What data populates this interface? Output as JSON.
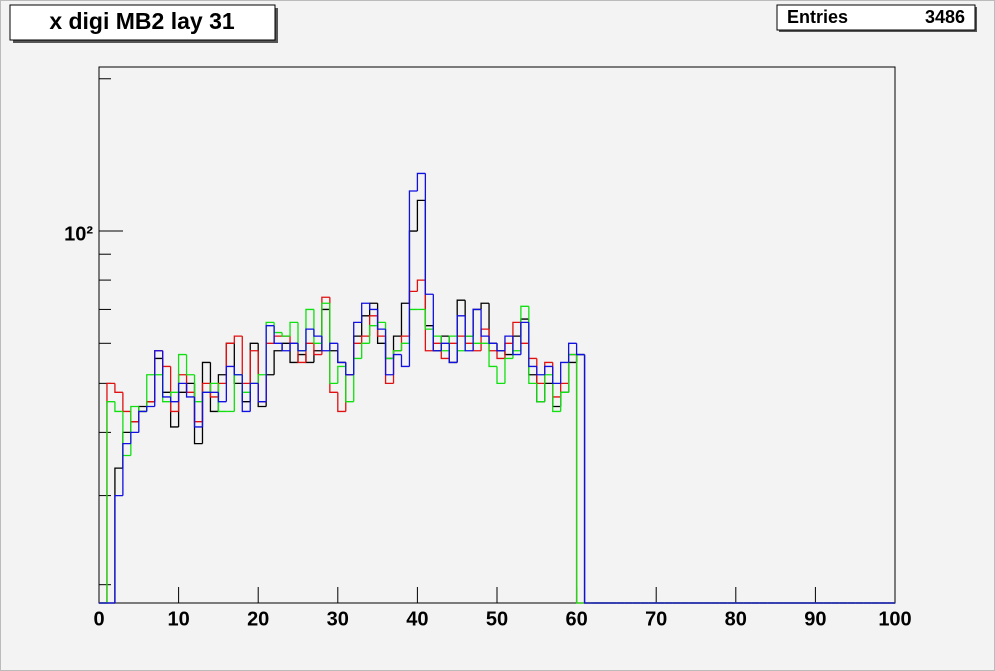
{
  "chart_data": {
    "type": "histogram",
    "title": "x digi MB2 lay 31",
    "stats": {
      "label": "Entries",
      "value": 3486
    },
    "log_y": true,
    "bins": [
      0,
      1,
      2,
      3,
      4,
      5,
      6,
      7,
      8,
      9,
      10,
      11,
      12,
      13,
      14,
      15,
      16,
      17,
      18,
      19,
      20,
      21,
      22,
      23,
      24,
      25,
      26,
      27,
      28,
      29,
      30,
      31,
      32,
      33,
      34,
      35,
      36,
      37,
      38,
      39,
      40,
      41,
      42,
      43,
      44,
      45,
      46,
      47,
      48,
      49,
      50,
      51,
      52,
      53,
      54,
      55,
      56,
      57,
      58,
      59,
      60,
      61,
      62,
      63,
      64,
      65,
      66,
      67,
      68,
      69,
      70,
      71,
      72,
      73,
      74,
      75,
      76,
      77,
      78,
      79,
      80,
      81,
      82,
      83,
      84,
      85,
      86,
      87,
      88,
      89,
      90,
      91,
      92,
      93,
      94,
      95,
      96,
      97,
      98,
      99,
      100
    ],
    "xlim": [
      0,
      100
    ],
    "xticks": [
      0,
      10,
      20,
      30,
      40,
      50,
      60,
      70,
      80,
      90,
      100
    ],
    "ylim": [
      18.4,
      211
    ],
    "yticks": [
      {
        "value": 100,
        "label": "10²"
      }
    ],
    "yminor_ticks": [
      20,
      30,
      40,
      50,
      60,
      70,
      80,
      90,
      200
    ],
    "series": [
      {
        "color": "#000000",
        "values": [
          0,
          0,
          34,
          40,
          42,
          45,
          46,
          56,
          48,
          41,
          48,
          50,
          38,
          55,
          44,
          52,
          60,
          50,
          46,
          60,
          45,
          52,
          58,
          60,
          55,
          57,
          55,
          58,
          70,
          58,
          55,
          52,
          62,
          68,
          72,
          60,
          56,
          62,
          72,
          100,
          115,
          65,
          58,
          62,
          55,
          73,
          62,
          70,
          72,
          60,
          58,
          57,
          62,
          67,
          52,
          46,
          50,
          45,
          48,
          55,
          57,
          0,
          0,
          0,
          0,
          0,
          0,
          0,
          0,
          0,
          0,
          0,
          0,
          0,
          0,
          0,
          0,
          0,
          0,
          0,
          0,
          0,
          0,
          0,
          0,
          0,
          0,
          0,
          0,
          0,
          0,
          0,
          0,
          0,
          0,
          0,
          0,
          0,
          0,
          0
        ]
      },
      {
        "color": "#e01010",
        "values": [
          0,
          50,
          48,
          44,
          42,
          44,
          46,
          58,
          54,
          44,
          52,
          48,
          42,
          50,
          47,
          50,
          60,
          62,
          50,
          58,
          46,
          60,
          62,
          62,
          60,
          55,
          60,
          57,
          74,
          48,
          44,
          52,
          60,
          62,
          68,
          62,
          50,
          58,
          62,
          76,
          80,
          58,
          60,
          56,
          60,
          62,
          60,
          58,
          64,
          58,
          56,
          60,
          66,
          60,
          56,
          50,
          55,
          47,
          50,
          57,
          0,
          0,
          0,
          0,
          0,
          0,
          0,
          0,
          0,
          0,
          0,
          0,
          0,
          0,
          0,
          0,
          0,
          0,
          0,
          0,
          0,
          0,
          0,
          0,
          0,
          0,
          0,
          0,
          0,
          0,
          0,
          0,
          0,
          0,
          0,
          0,
          0,
          0,
          0,
          0
        ]
      },
      {
        "color": "#10e010",
        "values": [
          0,
          46,
          44,
          36,
          45,
          44,
          52,
          52,
          46,
          48,
          57,
          52,
          46,
          48,
          50,
          44,
          44,
          52,
          48,
          50,
          52,
          66,
          63,
          62,
          66,
          58,
          70,
          60,
          72,
          50,
          54,
          46,
          56,
          60,
          65,
          66,
          56,
          58,
          60,
          70,
          70,
          64,
          62,
          58,
          62,
          58,
          62,
          60,
          60,
          54,
          50,
          56,
          58,
          71,
          50,
          46,
          52,
          44,
          48,
          57,
          0,
          0,
          0,
          0,
          0,
          0,
          0,
          0,
          0,
          0,
          0,
          0,
          0,
          0,
          0,
          0,
          0,
          0,
          0,
          0,
          0,
          0,
          0,
          0,
          0,
          0,
          0,
          0,
          0,
          0,
          0,
          0,
          0,
          0,
          0,
          0,
          0,
          0,
          0,
          0
        ]
      },
      {
        "color": "#1010e0",
        "values": [
          0,
          0,
          30,
          38,
          40,
          44,
          45,
          58,
          47,
          46,
          50,
          47,
          41,
          48,
          48,
          46,
          54,
          52,
          44,
          50,
          46,
          65,
          60,
          58,
          60,
          58,
          64,
          62,
          58,
          60,
          55,
          52,
          66,
          72,
          70,
          64,
          52,
          57,
          54,
          120,
          130,
          75,
          58,
          60,
          55,
          68,
          58,
          70,
          62,
          60,
          58,
          62,
          57,
          66,
          54,
          52,
          54,
          50,
          55,
          60,
          57,
          0,
          0,
          0,
          0,
          0,
          0,
          0,
          0,
          0,
          0,
          0,
          0,
          0,
          0,
          0,
          0,
          0,
          0,
          0,
          0,
          0,
          0,
          0,
          0,
          0,
          0,
          0,
          0,
          0,
          0,
          0,
          0,
          0,
          0,
          0,
          0,
          0,
          0,
          0
        ]
      }
    ]
  }
}
